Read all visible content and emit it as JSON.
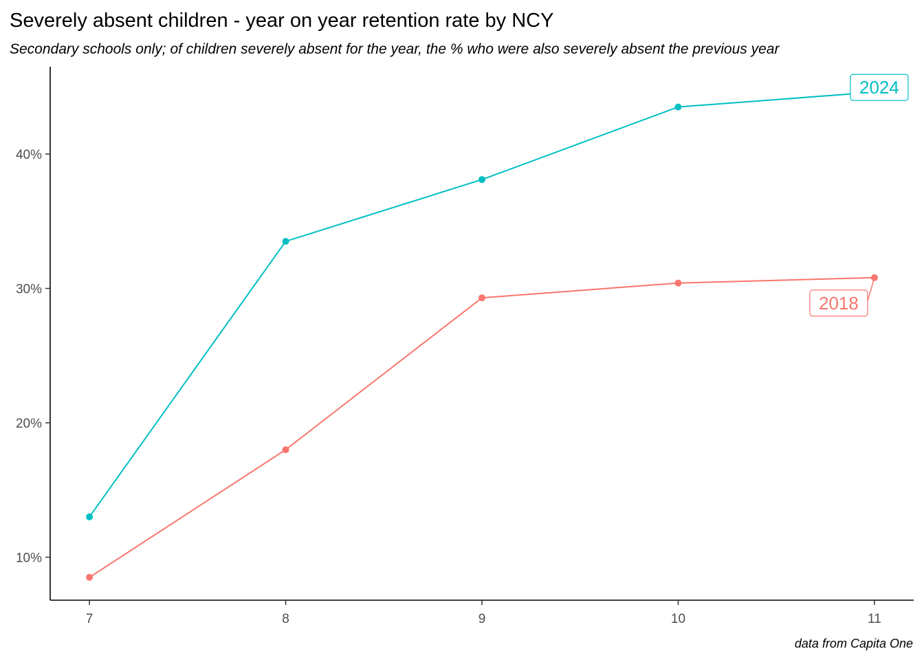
{
  "chart_data": {
    "type": "line",
    "title": "Severely absent children - year on year retention rate by NCY",
    "subtitle": "Secondary schools only; of children severely absent for the year, the % who were also severely absent the previous year",
    "caption": "data from Capita One",
    "xlabel": "",
    "ylabel": "",
    "x": [
      7,
      8,
      9,
      10,
      11
    ],
    "xlim": [
      6.8,
      11.2
    ],
    "ylim": [
      6.8,
      46.5
    ],
    "x_ticks": [
      7,
      8,
      9,
      10,
      11
    ],
    "y_ticks": [
      10,
      20,
      30,
      40
    ],
    "y_tick_labels": [
      "10%",
      "20%",
      "30%",
      "40%"
    ],
    "grid": false,
    "legend": "none",
    "series": [
      {
        "name": "2018",
        "color": "#F8766D",
        "values": [
          8.5,
          18.0,
          29.3,
          30.4,
          30.8
        ]
      },
      {
        "name": "2024",
        "color": "#00BFC4",
        "values": [
          13.0,
          33.5,
          38.1,
          43.5,
          44.6
        ]
      }
    ]
  }
}
